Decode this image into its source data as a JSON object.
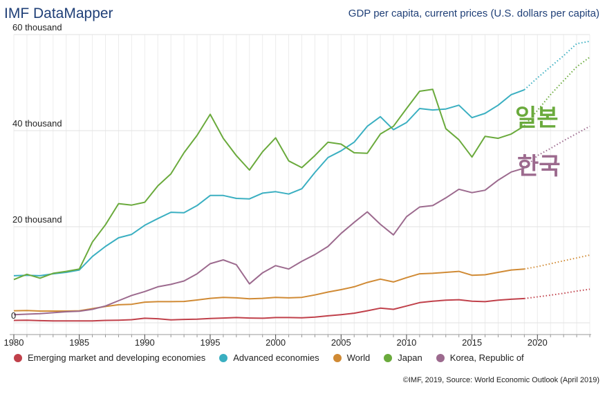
{
  "header": {
    "brand": "IMF DataMapper",
    "subtitle": "GDP per capita, current prices (U.S. dollars per capita)"
  },
  "annotations": {
    "japan_label": "일본",
    "korea_label": "한국"
  },
  "footer": {
    "source": "©IMF, 2019, Source: World Economic Outlook (April 2019)"
  },
  "chart_data": {
    "type": "line",
    "title": "GDP per capita, current prices (U.S. dollars per capita)",
    "xlabel": "",
    "ylabel": "",
    "xlim": [
      1980,
      2024
    ],
    "ylim": [
      0,
      60000
    ],
    "y_ticks": [
      0,
      20000,
      40000,
      60000
    ],
    "y_tick_labels": [
      "0",
      "20 thousand",
      "40 thousand",
      "60 thousand"
    ],
    "x_ticks": [
      1980,
      1985,
      1990,
      1995,
      2000,
      2005,
      2010,
      2015,
      2020
    ],
    "x_tick_labels": [
      "1980",
      "1985",
      "1990",
      "1995",
      "2000",
      "2005",
      "2010",
      "2015",
      "2020"
    ],
    "grid": true,
    "last_actual_year": 2019,
    "series": [
      {
        "name": "Emerging market and developing economies",
        "color": "#c0404a",
        "x": [
          1980,
          1981,
          1982,
          1983,
          1984,
          1985,
          1986,
          1987,
          1988,
          1989,
          1990,
          1991,
          1992,
          1993,
          1994,
          1995,
          1996,
          1997,
          1998,
          1999,
          2000,
          2001,
          2002,
          2003,
          2004,
          2005,
          2006,
          2007,
          2008,
          2009,
          2010,
          2011,
          2012,
          2013,
          2014,
          2015,
          2016,
          2017,
          2018,
          2019,
          2020,
          2021,
          2022,
          2023,
          2024
        ],
        "values": [
          500,
          550,
          450,
          400,
          400,
          400,
          400,
          500,
          550,
          650,
          950,
          850,
          600,
          700,
          750,
          900,
          1000,
          1100,
          1000,
          950,
          1100,
          1100,
          1050,
          1200,
          1450,
          1700,
          2000,
          2500,
          3050,
          2800,
          3500,
          4200,
          4500,
          4700,
          4800,
          4500,
          4400,
          4700,
          4900,
          5050,
          5400,
          5750,
          6150,
          6600,
          7000
        ]
      },
      {
        "name": "Advanced economies",
        "color": "#3aafc1",
        "x": [
          1980,
          1981,
          1982,
          1983,
          1984,
          1985,
          1986,
          1987,
          1988,
          1989,
          1990,
          1991,
          1992,
          1993,
          1994,
          1995,
          1996,
          1997,
          1998,
          1999,
          2000,
          2001,
          2002,
          2003,
          2004,
          2005,
          2006,
          2007,
          2008,
          2009,
          2010,
          2011,
          2012,
          2013,
          2014,
          2015,
          2016,
          2017,
          2018,
          2019,
          2020,
          2021,
          2022,
          2023,
          2024
        ],
        "values": [
          9800,
          9900,
          9800,
          10200,
          10500,
          11000,
          13800,
          15900,
          17700,
          18400,
          20300,
          21700,
          23000,
          22900,
          24400,
          26500,
          26500,
          25900,
          25800,
          27000,
          27300,
          26800,
          27900,
          31300,
          34400,
          35800,
          37600,
          40900,
          42900,
          40200,
          41700,
          44600,
          44300,
          44500,
          45300,
          42700,
          43600,
          45300,
          47500,
          48500,
          51000,
          53300,
          55600,
          58100,
          58600
        ]
      },
      {
        "name": "World",
        "color": "#d08a34",
        "x": [
          1980,
          1981,
          1982,
          1983,
          1984,
          1985,
          1986,
          1987,
          1988,
          1989,
          1990,
          1991,
          1992,
          1993,
          1994,
          1995,
          1996,
          1997,
          1998,
          1999,
          2000,
          2001,
          2002,
          2003,
          2004,
          2005,
          2006,
          2007,
          2008,
          2009,
          2010,
          2011,
          2012,
          2013,
          2014,
          2015,
          2016,
          2017,
          2018,
          2019,
          2020,
          2021,
          2022,
          2023,
          2024
        ],
        "values": [
          2500,
          2550,
          2450,
          2450,
          2450,
          2500,
          2950,
          3400,
          3750,
          3850,
          4300,
          4400,
          4400,
          4450,
          4750,
          5100,
          5300,
          5200,
          5000,
          5100,
          5300,
          5200,
          5300,
          5800,
          6400,
          6900,
          7500,
          8400,
          9100,
          8500,
          9400,
          10200,
          10300,
          10500,
          10700,
          9900,
          10000,
          10500,
          11000,
          11200,
          11700,
          12300,
          12900,
          13500,
          14100
        ]
      },
      {
        "name": "Japan",
        "color": "#6aaa3c",
        "x": [
          1980,
          1981,
          1982,
          1983,
          1984,
          1985,
          1986,
          1987,
          1988,
          1989,
          1990,
          1991,
          1992,
          1993,
          1994,
          1995,
          1996,
          1997,
          1998,
          1999,
          2000,
          2001,
          2002,
          2003,
          2004,
          2005,
          2006,
          2007,
          2008,
          2009,
          2010,
          2011,
          2012,
          2013,
          2014,
          2015,
          2016,
          2017,
          2018,
          2019,
          2020,
          2021,
          2022,
          2023,
          2024
        ],
        "values": [
          9000,
          10100,
          9300,
          10300,
          10700,
          11200,
          16800,
          20400,
          24800,
          24500,
          25100,
          28500,
          31000,
          35400,
          39000,
          43400,
          38400,
          34800,
          31800,
          35600,
          38500,
          33700,
          32300,
          34800,
          37600,
          37200,
          35400,
          35300,
          39300,
          40900,
          44600,
          48200,
          48600,
          40400,
          38100,
          34500,
          38800,
          38400,
          39300,
          41000,
          44200,
          47500,
          50400,
          53300,
          55300
        ]
      },
      {
        "name": "Korea, Republic of",
        "color": "#9c6a8e",
        "x": [
          1980,
          1981,
          1982,
          1983,
          1984,
          1985,
          1986,
          1987,
          1988,
          1989,
          1990,
          1991,
          1992,
          1993,
          1994,
          1995,
          1996,
          1997,
          1998,
          1999,
          2000,
          2001,
          2002,
          2003,
          2004,
          2005,
          2006,
          2007,
          2008,
          2009,
          2010,
          2011,
          2012,
          2013,
          2014,
          2015,
          2016,
          2017,
          2018,
          2019,
          2020,
          2021,
          2022,
          2023,
          2024
        ],
        "values": [
          1700,
          1800,
          1900,
          2100,
          2300,
          2400,
          2800,
          3500,
          4600,
          5700,
          6500,
          7500,
          8000,
          8700,
          10200,
          12300,
          13100,
          12100,
          8100,
          10400,
          11900,
          11200,
          12800,
          14200,
          15900,
          18600,
          20900,
          23100,
          20500,
          18300,
          22100,
          24100,
          24400,
          26000,
          27800,
          27100,
          27600,
          29700,
          31400,
          32200,
          34800,
          36300,
          37900,
          39400,
          40900
        ]
      }
    ],
    "legend": [
      "Emerging market and developing economies",
      "Advanced economies",
      "World",
      "Japan",
      "Korea, Republic of"
    ],
    "legend_position": "bottom"
  }
}
